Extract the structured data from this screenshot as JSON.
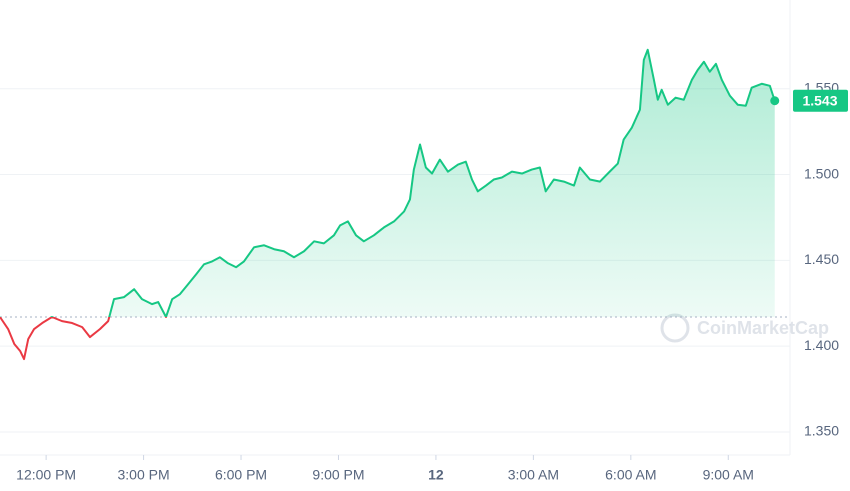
{
  "chart_data": {
    "type": "line",
    "watermark": "CoinMarketCap",
    "up_color": "#16c784",
    "down_color": "#ea3943",
    "baseline": 1.417,
    "x": [
      10.58,
      10.83,
      11.02,
      11.2,
      11.32,
      11.45,
      11.63,
      11.88,
      12.18,
      12.49,
      12.8,
      13.11,
      13.35,
      13.66,
      13.91,
      14.09,
      14.4,
      14.71,
      14.95,
      15.26,
      15.45,
      15.69,
      15.88,
      16.12,
      16.37,
      16.62,
      16.86,
      17.11,
      17.35,
      17.6,
      17.85,
      18.09,
      18.4,
      18.71,
      19.02,
      19.32,
      19.63,
      19.94,
      20.25,
      20.55,
      20.86,
      21.05,
      21.29,
      21.54,
      21.78,
      22.09,
      22.4,
      22.71,
      23.02,
      23.2,
      23.32,
      23.51,
      23.69,
      23.88,
      24.12,
      24.37,
      24.68,
      24.92,
      25.11,
      25.29,
      25.54,
      25.78,
      26.03,
      26.34,
      26.65,
      26.95,
      27.2,
      27.38,
      27.63,
      27.94,
      28.25,
      28.43,
      28.74,
      29.05,
      29.35,
      29.6,
      29.78,
      30.03,
      30.28,
      30.4,
      30.52,
      30.71,
      30.83,
      30.95,
      31.14,
      31.38,
      31.63,
      31.88,
      32.06,
      32.25,
      32.43,
      32.62,
      32.8,
      33.05,
      33.29,
      33.54,
      33.72,
      34.03,
      34.28,
      34.43
    ],
    "values": [
      1.417,
      1.41,
      1.4013,
      1.3972,
      1.3925,
      1.4042,
      1.41,
      1.4135,
      1.417,
      1.4146,
      1.4135,
      1.4111,
      1.4053,
      1.41,
      1.4146,
      1.4274,
      1.4286,
      1.4332,
      1.4274,
      1.4245,
      1.4257,
      1.417,
      1.4274,
      1.4303,
      1.4361,
      1.4419,
      1.4477,
      1.4494,
      1.4518,
      1.4483,
      1.446,
      1.4494,
      1.4576,
      1.4588,
      1.4565,
      1.4553,
      1.4518,
      1.4553,
      1.4611,
      1.4599,
      1.4646,
      1.4704,
      1.4727,
      1.4646,
      1.4611,
      1.4646,
      1.4692,
      1.4727,
      1.4785,
      1.4855,
      1.5029,
      1.5175,
      1.5041,
      1.5006,
      1.5087,
      1.5017,
      1.5058,
      1.5075,
      1.4971,
      1.4902,
      1.4936,
      1.4971,
      1.4983,
      1.5017,
      1.5006,
      1.5029,
      1.5041,
      1.4902,
      1.4971,
      1.4959,
      1.4936,
      1.5041,
      1.4971,
      1.4959,
      1.5017,
      1.5064,
      1.5204,
      1.5273,
      1.5378,
      1.5668,
      1.5727,
      1.5552,
      1.5436,
      1.5494,
      1.5407,
      1.5448,
      1.5436,
      1.5552,
      1.561,
      1.5657,
      1.5599,
      1.5645,
      1.5552,
      1.5459,
      1.5407,
      1.5401,
      1.5506,
      1.5529,
      1.5517,
      1.543
    ],
    "xlim": [
      10.58,
      34.9
    ],
    "xticks": [
      {
        "value": 12,
        "label": "12:00 PM"
      },
      {
        "value": 15,
        "label": "3:00 PM"
      },
      {
        "value": 18,
        "label": "6:00 PM"
      },
      {
        "value": 21,
        "label": "9:00 PM"
      },
      {
        "value": 24,
        "label": "12"
      },
      {
        "value": 27,
        "label": "3:00 AM"
      },
      {
        "value": 30,
        "label": "6:00 AM"
      },
      {
        "value": 33,
        "label": "9:00 AM"
      }
    ],
    "ylim": [
      1.3366,
      1.6017
    ],
    "yticks": [
      {
        "value": 1.35,
        "label": "1.350"
      },
      {
        "value": 1.4,
        "label": "1.400"
      },
      {
        "value": 1.45,
        "label": "1.450"
      },
      {
        "value": 1.5,
        "label": "1.500"
      },
      {
        "value": 1.55,
        "label": "1.550"
      }
    ],
    "grid": true
  }
}
